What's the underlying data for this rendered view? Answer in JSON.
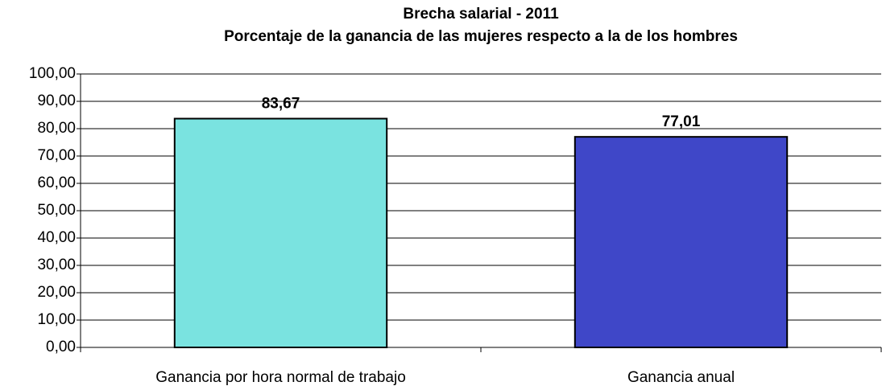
{
  "chart_data": {
    "type": "bar",
    "title": "Brecha salarial - 2011",
    "subtitle": "Porcentaje de la ganancia de las mujeres respecto a la de los hombres",
    "categories": [
      "Ganancia por hora normal de trabajo",
      "Ganancia anual"
    ],
    "values": [
      83.67,
      77.01
    ],
    "value_labels": [
      "83,67",
      "77,01"
    ],
    "colors": [
      "#7ae3e0",
      "#3f47c8"
    ],
    "ylim": [
      0,
      100
    ],
    "yticks": [
      {
        "value": 0,
        "label": "0,00"
      },
      {
        "value": 10,
        "label": "10,00"
      },
      {
        "value": 20,
        "label": "20,00"
      },
      {
        "value": 30,
        "label": "30,00"
      },
      {
        "value": 40,
        "label": "40,00"
      },
      {
        "value": 50,
        "label": "50,00"
      },
      {
        "value": 60,
        "label": "60,00"
      },
      {
        "value": 70,
        "label": "70,00"
      },
      {
        "value": 80,
        "label": "80,00"
      },
      {
        "value": 90,
        "label": "90,00"
      },
      {
        "value": 100,
        "label": "100,00"
      }
    ],
    "grid": true
  }
}
